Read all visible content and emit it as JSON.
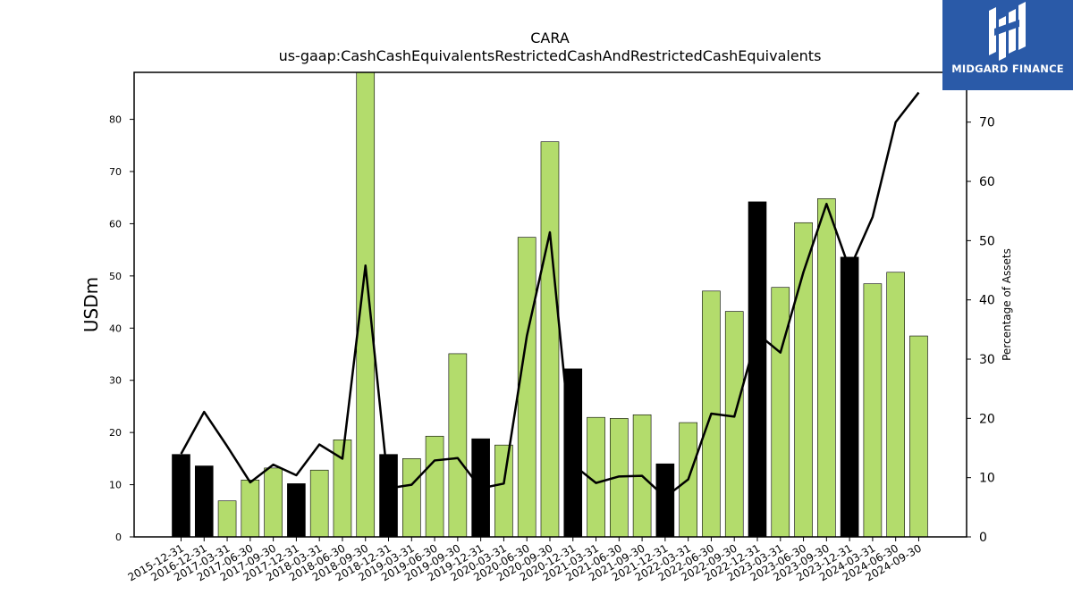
{
  "chart_data": {
    "type": "bar",
    "title": "CARA",
    "subtitle": "us-gaap:CashCashEquivalentsRestrictedCashAndRestrictedCashEquivalents",
    "ylabel": "USDm",
    "y2label": "Percentage of Assets",
    "ylim": [
      0,
      89
    ],
    "y2lim": [
      0,
      78.4
    ],
    "yticks": [
      0,
      10,
      20,
      30,
      40,
      50,
      60,
      70,
      80
    ],
    "y2ticks": [
      0,
      10,
      20,
      30,
      40,
      50,
      60,
      70
    ],
    "categories": [
      "2015-12-31",
      "2016-12-31",
      "2017-03-31",
      "2017-06-30",
      "2017-09-30",
      "2017-12-31",
      "2018-03-31",
      "2018-06-30",
      "2018-09-30",
      "2018-12-31",
      "2019-03-31",
      "2019-06-30",
      "2019-09-30",
      "2019-12-31",
      "2020-03-31",
      "2020-06-30",
      "2020-09-30",
      "2020-12-31",
      "2021-03-31",
      "2021-06-30",
      "2021-09-30",
      "2021-12-31",
      "2022-03-31",
      "2022-06-30",
      "2022-09-30",
      "2022-12-31",
      "2023-03-31",
      "2023-06-30",
      "2023-09-30",
      "2023-12-31",
      "2024-03-31",
      "2024-06-30",
      "2024-09-30"
    ],
    "series": [
      {
        "kind": "bar",
        "values": [
          15.8,
          13.6,
          6.9,
          10.9,
          13.2,
          10.2,
          12.8,
          18.6,
          89.5,
          15.8,
          15.0,
          19.3,
          35.1,
          18.8,
          17.6,
          57.4,
          75.7,
          32.2,
          22.9,
          22.7,
          23.4,
          14.0,
          21.9,
          47.1,
          43.2,
          64.2,
          47.8,
          60.2,
          64.8,
          53.6,
          48.5,
          50.7,
          38.5
        ],
        "highlight": [
          true,
          true,
          false,
          false,
          false,
          true,
          false,
          false,
          false,
          true,
          false,
          false,
          false,
          true,
          false,
          false,
          false,
          true,
          false,
          false,
          false,
          true,
          false,
          false,
          false,
          true,
          false,
          false,
          false,
          true,
          false,
          false,
          false
        ]
      },
      {
        "kind": "line",
        "axis": "right",
        "values": [
          14.0,
          21.1,
          15.3,
          9.2,
          12.2,
          10.4,
          15.6,
          13.2,
          45.8,
          8.2,
          8.8,
          12.9,
          13.3,
          8.2,
          9.0,
          33.9,
          51.4,
          12.2,
          9.1,
          10.2,
          10.3,
          6.7,
          9.7,
          20.8,
          20.3,
          34.3,
          31.1,
          44.7,
          56.2,
          45.2,
          54.0,
          70.0,
          75.0
        ]
      }
    ],
    "colors": {
      "bar": "#b3dc6c",
      "highlight": "#000000",
      "line": "#000000",
      "edge": "#000000"
    },
    "grid": false,
    "legend": "none"
  },
  "logo": {
    "text": "MIDGARD FINANCE",
    "color": "#2a5aa8"
  }
}
